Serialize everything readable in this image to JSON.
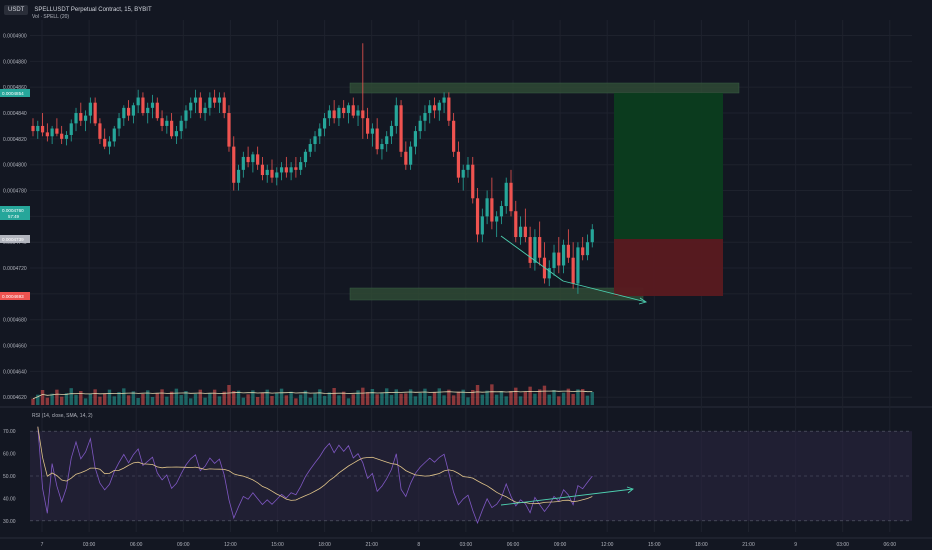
{
  "header": {
    "symbol_chip": "USDT",
    "title": "SPELLUSDT Perpetual Contract, 15, BYBIT",
    "volume_label": "Vol · SPELL (20)",
    "rsi_label": "RSI (14, close, SMA, 14, 2)"
  },
  "colors": {
    "background": "#131722",
    "grid": "#1e222d",
    "up": "#26a69a",
    "down": "#ef5350",
    "volume_ma": "#e0d8b0",
    "rsi_line": "#7e57c2",
    "rsi_ma": "#e0c48a",
    "rsi_band": "#2a2440",
    "zone": "#2f4a35",
    "target_zone": "#0b3d1f",
    "stop_zone": "#5a1a20",
    "divergence": "#4dd0b0"
  },
  "chart_data": {
    "type": "candlestick",
    "title": "SPELLUSDT Perpetual Contract, 15, BYBIT",
    "price_axis": {
      "ticks": [
        "0.0004900",
        "0.0004880",
        "0.0004860",
        "0.0004840",
        "0.0004820",
        "0.0004800",
        "0.0004780",
        "0.0004760",
        "0.0004740",
        "0.0004720",
        "0.0004700",
        "0.0004680",
        "0.0004660",
        "0.0004640",
        "0.0004620"
      ],
      "range": [
        0.0004614,
        0.0004912
      ]
    },
    "price_badges": [
      {
        "label": "0.0004854",
        "color": "#26a69a"
      },
      {
        "label": "0.0004760",
        "sub": "57:49",
        "color": "#26a69a"
      },
      {
        "label": "0.0004739",
        "color": "#b2b5be"
      },
      {
        "label": "0.0004693",
        "color": "#ef5350"
      }
    ],
    "time_axis": [
      "7",
      "03:00",
      "06:00",
      "09:00",
      "12:00",
      "15:00",
      "18:00",
      "21:00",
      "8",
      "03:00",
      "06:00",
      "09:00",
      "12:00",
      "15:00",
      "18:00",
      "21:00",
      "9",
      "03:00",
      "06:00"
    ],
    "candles_ohlc_approx": [
      [
        0.000483,
        0.0004836,
        0.0004822,
        0.0004826
      ],
      [
        0.0004826,
        0.0004834,
        0.000482,
        0.000483
      ],
      [
        0.000483,
        0.000484,
        0.0004822,
        0.0004825
      ],
      [
        0.0004825,
        0.0004832,
        0.0004818,
        0.0004822
      ],
      [
        0.0004822,
        0.000483,
        0.0004816,
        0.0004828
      ],
      [
        0.0004828,
        0.0004836,
        0.0004822,
        0.0004824
      ],
      [
        0.0004824,
        0.000483,
        0.0004816,
        0.000482
      ],
      [
        0.000482,
        0.0004826,
        0.0004815,
        0.0004823
      ],
      [
        0.0004823,
        0.0004835,
        0.0004818,
        0.0004832
      ],
      [
        0.0004832,
        0.0004844,
        0.0004826,
        0.000484
      ],
      [
        0.000484,
        0.0004848,
        0.000483,
        0.0004834
      ],
      [
        0.0004834,
        0.0004842,
        0.0004826,
        0.0004838
      ],
      [
        0.0004838,
        0.0004852,
        0.0004832,
        0.0004848
      ],
      [
        0.0004848,
        0.0004852,
        0.000483,
        0.0004832
      ],
      [
        0.0004832,
        0.0004836,
        0.0004816,
        0.000482
      ],
      [
        0.000482,
        0.0004828,
        0.0004812,
        0.0004814
      ],
      [
        0.0004814,
        0.0004822,
        0.0004808,
        0.0004818
      ],
      [
        0.0004818,
        0.000483,
        0.0004814,
        0.0004828
      ],
      [
        0.0004828,
        0.000484,
        0.0004822,
        0.0004836
      ],
      [
        0.0004836,
        0.0004846,
        0.000483,
        0.0004844
      ],
      [
        0.0004844,
        0.000485,
        0.0004834,
        0.0004838
      ],
      [
        0.0004838,
        0.0004848,
        0.0004832,
        0.0004846
      ],
      [
        0.0004846,
        0.0004858,
        0.000484,
        0.0004852
      ],
      [
        0.0004852,
        0.0004856,
        0.0004838,
        0.000484
      ],
      [
        0.000484,
        0.0004848,
        0.0004832,
        0.0004844
      ],
      [
        0.0004844,
        0.0004854,
        0.0004836,
        0.0004848
      ],
      [
        0.0004848,
        0.0004852,
        0.0004834,
        0.0004836
      ],
      [
        0.0004836,
        0.0004842,
        0.0004826,
        0.000483
      ],
      [
        0.000483,
        0.0004838,
        0.0004824,
        0.0004834
      ],
      [
        0.0004834,
        0.000484,
        0.000482,
        0.0004822
      ],
      [
        0.0004822,
        0.000483,
        0.0004816,
        0.0004826
      ],
      [
        0.0004826,
        0.0004838,
        0.000482,
        0.0004834
      ],
      [
        0.0004834,
        0.0004846,
        0.0004828,
        0.0004842
      ],
      [
        0.0004842,
        0.0004852,
        0.0004836,
        0.0004848
      ],
      [
        0.0004848,
        0.0004858,
        0.000484,
        0.0004852
      ],
      [
        0.0004852,
        0.0004856,
        0.0004836,
        0.000484
      ],
      [
        0.000484,
        0.0004848,
        0.0004834,
        0.0004844
      ],
      [
        0.0004844,
        0.0004856,
        0.0004838,
        0.0004852
      ],
      [
        0.0004852,
        0.0004858,
        0.0004844,
        0.0004848
      ],
      [
        0.0004848,
        0.0004856,
        0.000484,
        0.0004852
      ],
      [
        0.0004852,
        0.0004856,
        0.0004836,
        0.000484
      ],
      [
        0.000484,
        0.0004846,
        0.000481,
        0.0004814
      ],
      [
        0.0004814,
        0.0004822,
        0.000478,
        0.0004786
      ],
      [
        0.0004786,
        0.00048,
        0.000478,
        0.0004796
      ],
      [
        0.0004796,
        0.000481,
        0.000479,
        0.0004806
      ],
      [
        0.0004806,
        0.0004814,
        0.0004798,
        0.0004802
      ],
      [
        0.0004802,
        0.000481,
        0.0004794,
        0.0004808
      ],
      [
        0.0004808,
        0.0004814,
        0.0004796,
        0.00048
      ],
      [
        0.00048,
        0.0004806,
        0.0004788,
        0.0004792
      ],
      [
        0.0004792,
        0.00048,
        0.0004786,
        0.0004796
      ],
      [
        0.0004796,
        0.0004804,
        0.0004786,
        0.000479
      ],
      [
        0.000479,
        0.0004798,
        0.0004784,
        0.0004794
      ],
      [
        0.0004794,
        0.0004802,
        0.0004788,
        0.0004798
      ],
      [
        0.0004798,
        0.0004806,
        0.000479,
        0.0004794
      ],
      [
        0.0004794,
        0.0004802,
        0.0004788,
        0.0004798
      ],
      [
        0.0004798,
        0.0004806,
        0.000479,
        0.0004796
      ],
      [
        0.0004796,
        0.0004806,
        0.0004792,
        0.0004802
      ],
      [
        0.0004802,
        0.0004812,
        0.0004798,
        0.000481
      ],
      [
        0.000481,
        0.000482,
        0.0004806,
        0.0004816
      ],
      [
        0.0004816,
        0.0004826,
        0.000481,
        0.0004822
      ],
      [
        0.0004822,
        0.0004832,
        0.0004816,
        0.0004828
      ],
      [
        0.0004828,
        0.000484,
        0.0004822,
        0.0004836
      ],
      [
        0.0004836,
        0.0004846,
        0.000483,
        0.0004842
      ],
      [
        0.0004842,
        0.000485,
        0.0004832,
        0.0004836
      ],
      [
        0.0004836,
        0.0004846,
        0.000483,
        0.0004844
      ],
      [
        0.0004844,
        0.000485,
        0.0004836,
        0.000484
      ],
      [
        0.000484,
        0.0004848,
        0.0004832,
        0.0004846
      ],
      [
        0.0004846,
        0.0004852,
        0.0004836,
        0.0004838
      ],
      [
        0.0004838,
        0.0004846,
        0.000483,
        0.0004842
      ],
      [
        0.0004842,
        0.0004894,
        0.000482,
        0.0004836
      ],
      [
        0.0004836,
        0.0004844,
        0.000482,
        0.0004824
      ],
      [
        0.0004824,
        0.0004832,
        0.0004814,
        0.0004828
      ],
      [
        0.0004828,
        0.0004836,
        0.0004808,
        0.0004812
      ],
      [
        0.0004812,
        0.000482,
        0.0004804,
        0.0004816
      ],
      [
        0.0004816,
        0.0004826,
        0.000481,
        0.0004822
      ],
      [
        0.0004822,
        0.0004834,
        0.0004816,
        0.000483
      ],
      [
        0.000483,
        0.0004852,
        0.0004824,
        0.0004846
      ],
      [
        0.0004846,
        0.000485,
        0.0004806,
        0.000481
      ],
      [
        0.000481,
        0.0004818,
        0.0004796,
        0.00048
      ],
      [
        0.00048,
        0.0004818,
        0.0004796,
        0.0004814
      ],
      [
        0.0004814,
        0.000483,
        0.0004808,
        0.0004826
      ],
      [
        0.0004826,
        0.0004838,
        0.000482,
        0.0004834
      ],
      [
        0.0004834,
        0.0004846,
        0.0004826,
        0.000484
      ],
      [
        0.000484,
        0.000485,
        0.0004832,
        0.0004846
      ],
      [
        0.0004846,
        0.0004852,
        0.0004836,
        0.0004842
      ],
      [
        0.0004842,
        0.000485,
        0.0004834,
        0.0004848
      ],
      [
        0.0004848,
        0.0004856,
        0.000484,
        0.0004852
      ],
      [
        0.0004852,
        0.0004856,
        0.000483,
        0.0004834
      ],
      [
        0.0004834,
        0.000484,
        0.0004806,
        0.000481
      ],
      [
        0.000481,
        0.0004818,
        0.0004786,
        0.000479
      ],
      [
        0.000479,
        0.00048,
        0.000478,
        0.0004796
      ],
      [
        0.0004796,
        0.0004806,
        0.000479,
        0.00048
      ],
      [
        0.00048,
        0.0004806,
        0.000477,
        0.0004774
      ],
      [
        0.0004774,
        0.0004782,
        0.000474,
        0.0004746
      ],
      [
        0.0004746,
        0.0004766,
        0.000474,
        0.000476
      ],
      [
        0.000476,
        0.000478,
        0.0004754,
        0.0004774
      ],
      [
        0.0004774,
        0.000479,
        0.000475,
        0.0004756
      ],
      [
        0.0004756,
        0.0004764,
        0.0004744,
        0.000476
      ],
      [
        0.000476,
        0.0004772,
        0.0004754,
        0.0004768
      ],
      [
        0.0004768,
        0.000479,
        0.0004762,
        0.0004786
      ],
      [
        0.0004786,
        0.0004796,
        0.000476,
        0.0004764
      ],
      [
        0.0004764,
        0.0004772,
        0.000474,
        0.0004744
      ],
      [
        0.0004744,
        0.000476,
        0.0004738,
        0.0004752
      ],
      [
        0.0004752,
        0.0004766,
        0.000474,
        0.0004744
      ],
      [
        0.0004744,
        0.0004752,
        0.000472,
        0.0004724
      ],
      [
        0.0004724,
        0.000475,
        0.0004718,
        0.0004744
      ],
      [
        0.0004744,
        0.0004756,
        0.0004722,
        0.0004728
      ],
      [
        0.0004728,
        0.000474,
        0.0004708,
        0.0004712
      ],
      [
        0.0004712,
        0.0004726,
        0.0004706,
        0.000472
      ],
      [
        0.000472,
        0.0004738,
        0.0004714,
        0.0004732
      ],
      [
        0.0004732,
        0.0004744,
        0.0004716,
        0.0004722
      ],
      [
        0.0004722,
        0.0004742,
        0.0004716,
        0.0004738
      ],
      [
        0.0004738,
        0.000475,
        0.0004724,
        0.0004728
      ],
      [
        0.0004728,
        0.000474,
        0.0004704,
        0.0004708
      ],
      [
        0.0004708,
        0.000474,
        0.00047,
        0.0004736
      ],
      [
        0.0004736,
        0.0004744,
        0.0004726,
        0.000473
      ],
      [
        0.000473,
        0.0004746,
        0.0004726,
        0.000474
      ],
      [
        0.000474,
        0.0004754,
        0.0004736,
        0.000475
      ]
    ],
    "rsi_axis": {
      "ticks": [
        "70.00",
        "60.00",
        "50.00",
        "40.00",
        "30.00"
      ],
      "range": [
        25,
        75
      ],
      "bands": [
        30,
        70
      ],
      "midline": 50
    }
  }
}
